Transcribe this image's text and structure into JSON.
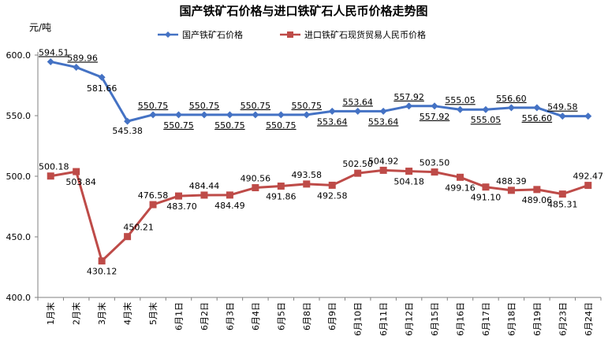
{
  "chart_data": {
    "type": "line",
    "title": "国产铁矿石价格与进口铁矿石人民币价格走势图",
    "ylabel": "元/吨",
    "ylim": [
      400,
      600
    ],
    "yticks": [
      "400.0",
      "450.0",
      "500.0",
      "550.0",
      "600.0"
    ],
    "grid": false,
    "legend_position": "top",
    "categories": [
      "1月末",
      "2月末",
      "3月末",
      "4月末",
      "5月末",
      "6月1日",
      "6月2日",
      "6月3日",
      "6月4日",
      "6月5日",
      "6月8日",
      "6月9日",
      "6月10日",
      "6月11日",
      "6月12日",
      "6月15日",
      "6月16日",
      "6月17日",
      "6月18日",
      "6月19日",
      "6月23日",
      "6月24日"
    ],
    "series": [
      {
        "name": "国产铁矿石价格",
        "color": "#4472c4",
        "marker": "diamond",
        "values": [
          594.51,
          589.96,
          581.66,
          545.38,
          550.75,
          550.75,
          550.75,
          550.75,
          550.75,
          550.75,
          550.75,
          553.64,
          553.64,
          553.64,
          557.92,
          557.92,
          555.05,
          555.05,
          556.6,
          556.6,
          549.58,
          549.58
        ],
        "labels": [
          "594.51",
          "589.96",
          "581.66",
          "545.38",
          "550.75",
          "550.75",
          "550.75",
          "550.75",
          "550.75",
          "550.75",
          "550.75",
          "553.64",
          "553.64",
          "553.64",
          "557.92",
          "557.92",
          "555.05",
          "555.05",
          "556.60",
          "556.60",
          "549.58",
          ""
        ]
      },
      {
        "name": "进口铁矿石现货贸易人民币价格",
        "color": "#be4b48",
        "marker": "square",
        "values": [
          500.18,
          503.84,
          430.12,
          450.21,
          476.58,
          483.7,
          484.44,
          484.49,
          490.56,
          491.86,
          493.58,
          492.58,
          502.5,
          504.92,
          504.18,
          503.5,
          499.16,
          491.1,
          488.39,
          489.06,
          485.31,
          492.47
        ],
        "labels": [
          "500.18",
          "503.84",
          "430.12",
          "450.21",
          "476.58",
          "483.70",
          "484.44",
          "484.49",
          "490.56",
          "491.86",
          "493.58",
          "492.58",
          "502.50",
          "504.92",
          "504.18",
          "503.50",
          "499.16",
          "491.10",
          "488.39",
          "489.06",
          "485.31",
          "492.47"
        ]
      }
    ]
  }
}
